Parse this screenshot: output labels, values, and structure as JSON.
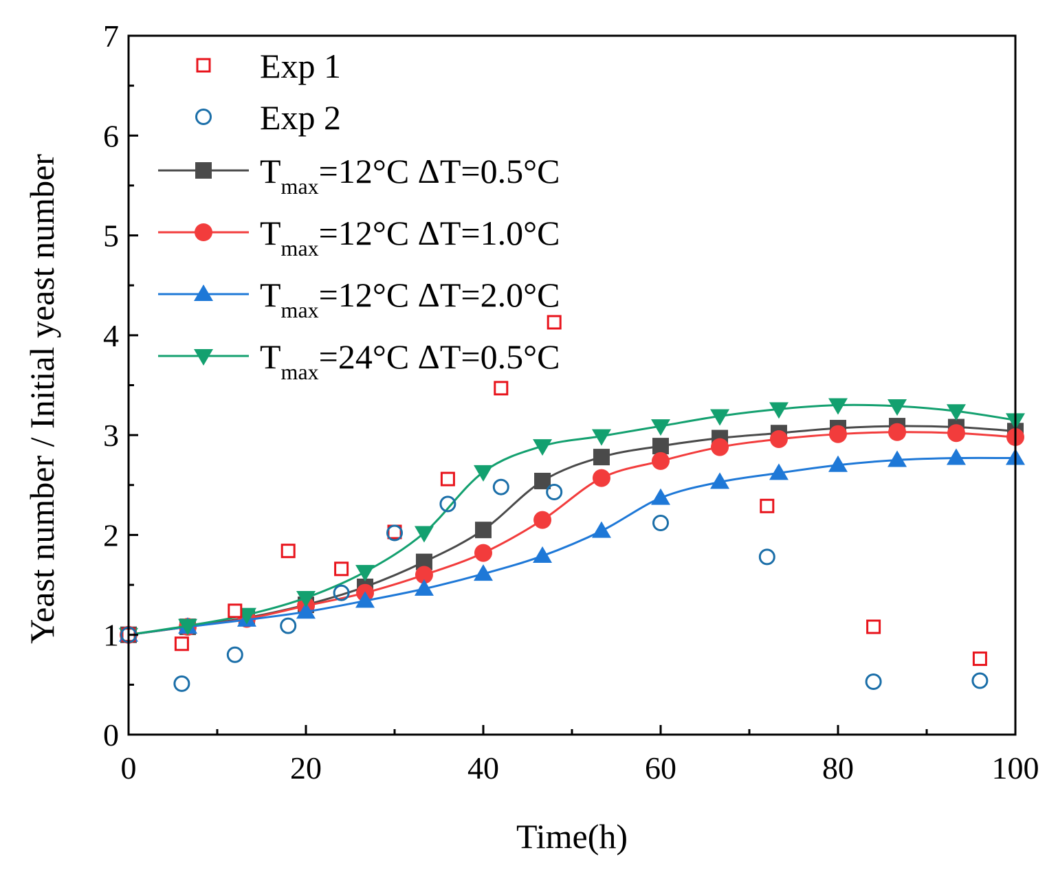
{
  "chart_data": {
    "type": "line",
    "xlabel": "Time(h)",
    "ylabel": "Yeast number / Initial yeast number",
    "xlim": [
      0,
      100
    ],
    "ylim": [
      0,
      7
    ],
    "xticks": [
      0,
      20,
      40,
      60,
      80,
      100
    ],
    "yticks": [
      0,
      1,
      2,
      3,
      4,
      5,
      6,
      7
    ],
    "legend_position": "top-left",
    "series": [
      {
        "name": "Exp 1",
        "label_parts": [
          "Exp 1"
        ],
        "style": "scatter",
        "marker": "square-open",
        "color": "#e8141c",
        "x": [
          0,
          6,
          12,
          18,
          24,
          30,
          36,
          42,
          48,
          72,
          84,
          96
        ],
        "y": [
          1.0,
          0.91,
          1.24,
          1.84,
          1.66,
          2.03,
          2.56,
          3.47,
          4.13,
          2.29,
          1.08,
          0.76
        ]
      },
      {
        "name": "Exp 2",
        "label_parts": [
          "Exp 2"
        ],
        "style": "scatter",
        "marker": "circle-open",
        "color": "#1a6ea8",
        "x": [
          0,
          6,
          12,
          18,
          24,
          30,
          36,
          42,
          48,
          60,
          72,
          84,
          96
        ],
        "y": [
          1.0,
          0.51,
          0.8,
          1.09,
          1.42,
          2.02,
          2.31,
          2.48,
          2.43,
          2.12,
          1.78,
          0.53,
          0.54
        ]
      },
      {
        "name": "Tmax=12°C ΔT=0.5°C",
        "label_parts": [
          "T",
          "max",
          "=12°C ΔT=0.5°C"
        ],
        "style": "line",
        "marker": "square",
        "color": "#4a4a4a",
        "x": [
          0,
          6.67,
          13.33,
          20,
          26.67,
          33.33,
          40,
          46.67,
          53.33,
          60,
          66.67,
          73.33,
          80,
          86.67,
          93.33,
          100
        ],
        "y": [
          1.0,
          1.08,
          1.17,
          1.3,
          1.48,
          1.73,
          2.05,
          2.54,
          2.78,
          2.89,
          2.97,
          3.02,
          3.07,
          3.09,
          3.08,
          3.04
        ]
      },
      {
        "name": "Tmax=12°C ΔT=1.0°C",
        "label_parts": [
          "T",
          "max",
          "=12°C ΔT=1.0°C"
        ],
        "style": "line",
        "marker": "circle",
        "color": "#f23c3c",
        "x": [
          0,
          6.67,
          13.33,
          20,
          26.67,
          33.33,
          40,
          46.67,
          53.33,
          60,
          66.67,
          73.33,
          80,
          86.67,
          93.33,
          100
        ],
        "y": [
          1.0,
          1.08,
          1.16,
          1.29,
          1.42,
          1.6,
          1.82,
          2.15,
          2.57,
          2.74,
          2.88,
          2.96,
          3.01,
          3.03,
          3.02,
          2.98
        ]
      },
      {
        "name": "Tmax=12°C ΔT=2.0°C",
        "label_parts": [
          "T",
          "max",
          "=12°C ΔT=2.0°C"
        ],
        "style": "line",
        "marker": "triangle-up",
        "color": "#1e78d7",
        "x": [
          0,
          6.67,
          13.33,
          20,
          26.67,
          33.33,
          40,
          46.67,
          53.33,
          60,
          66.67,
          73.33,
          80,
          86.67,
          93.33,
          100
        ],
        "y": [
          1.0,
          1.08,
          1.15,
          1.23,
          1.34,
          1.46,
          1.61,
          1.79,
          2.04,
          2.37,
          2.53,
          2.62,
          2.7,
          2.75,
          2.77,
          2.77
        ]
      },
      {
        "name": "Tmax=24°C ΔT=0.5°C",
        "label_parts": [
          "T",
          "max",
          "=24°C ΔT=0.5°C"
        ],
        "style": "line",
        "marker": "triangle-down",
        "color": "#13a06f",
        "x": [
          0,
          6.67,
          13.33,
          20,
          26.67,
          33.33,
          40,
          46.67,
          53.33,
          60,
          66.67,
          73.33,
          80,
          86.67,
          93.33,
          100
        ],
        "y": [
          1.0,
          1.09,
          1.2,
          1.37,
          1.63,
          2.02,
          2.63,
          2.89,
          2.99,
          3.09,
          3.19,
          3.26,
          3.3,
          3.29,
          3.24,
          3.15
        ]
      }
    ]
  }
}
